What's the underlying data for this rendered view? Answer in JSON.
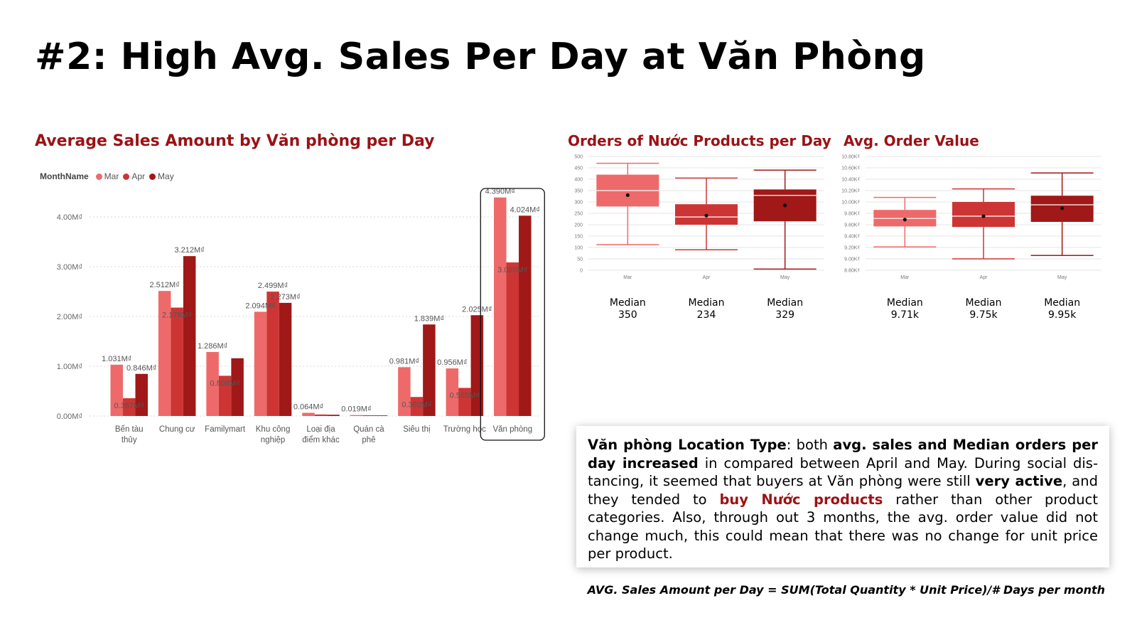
{
  "slide_title": "#2: High Avg. Sales Per Day at Văn Phòng",
  "colors": {
    "mar": "#ee6a6a",
    "apr": "#cd3535",
    "may": "#a01818",
    "title_red": "#9b1215"
  },
  "legend": {
    "title": "MonthName",
    "items": [
      "Mar",
      "Apr",
      "May"
    ]
  },
  "chart_data": [
    {
      "type": "bar",
      "title": "Average Sales Amount by Văn phòng per Day",
      "categories": [
        "Bến tàu thủy",
        "Chung cư",
        "Familymart",
        "Khu công nghiệp",
        "Loại địa điểm khác",
        "Quán cà phê",
        "Siêu thị",
        "Trường học",
        "Văn phòng"
      ],
      "category_lines": [
        [
          "Bến tàu",
          "thủy"
        ],
        [
          "Chung cư"
        ],
        [
          "Familymart"
        ],
        [
          "Khu công",
          "nghiệp"
        ],
        [
          "Loại địa",
          "điểm khác"
        ],
        [
          "Quán cà",
          "phê"
        ],
        [
          "Siêu thị"
        ],
        [
          "Trường học"
        ],
        [
          "Văn phòng"
        ]
      ],
      "series": [
        {
          "name": "Mar",
          "values": [
            1.031,
            2.512,
            1.286,
            2.094,
            0.064,
            0.019,
            0.981,
            0.956,
            4.39
          ],
          "labels": [
            "1.031M₫",
            "2.512M₫",
            "1.286M₫",
            "2.094M₫",
            "0.064M₫",
            "0.019M₫",
            "0.981M₫",
            "0.956M₫",
            "4.390M₫"
          ]
        },
        {
          "name": "Apr",
          "values": [
            0.357,
            2.178,
            0.808,
            2.499,
            0.03,
            0.015,
            0.382,
            0.565,
            3.085
          ],
          "labels": [
            "0.357M₫",
            "2.178M₫",
            "0.808M₫",
            "2.499M₫",
            "",
            "",
            "0.382M₫",
            "0.565M₫",
            "3.085M₫"
          ]
        },
        {
          "name": "May",
          "values": [
            0.846,
            3.212,
            1.16,
            2.273,
            0.025,
            0.012,
            1.839,
            2.025,
            4.024
          ],
          "labels": [
            "0.846M₫",
            "3.212M₫",
            "",
            "2.273M₫",
            "",
            "",
            "1.839M₫",
            "2.025M₫",
            "4.024M₫"
          ]
        }
      ],
      "yticks": [
        "0.00M₫",
        "1.00M₫",
        "2.00M₫",
        "3.00M₫",
        "4.00M₫"
      ],
      "ylim": [
        0,
        4.5
      ],
      "highlight": "Văn phòng"
    },
    {
      "type": "box",
      "title": "Orders of Nước Products per Day",
      "categories": [
        "Mar",
        "Apr",
        "May"
      ],
      "boxes": [
        {
          "min": 112,
          "q1": 280,
          "median": 350,
          "mean": 330,
          "q3": 420,
          "max": 470
        },
        {
          "min": 90,
          "q1": 200,
          "median": 234,
          "mean": 240,
          "q3": 290,
          "max": 405
        },
        {
          "min": 5,
          "q1": 215,
          "median": 329,
          "mean": 285,
          "q3": 355,
          "max": 440
        }
      ],
      "yticks": [
        "0",
        "50",
        "100",
        "150",
        "200",
        "250",
        "300",
        "350",
        "400",
        "450",
        "500"
      ],
      "ylim": [
        0,
        500
      ],
      "median_labels": [
        [
          "Median",
          "350"
        ],
        [
          "Median",
          "234"
        ],
        [
          "Median",
          "329"
        ]
      ]
    },
    {
      "type": "box",
      "title": "Avg. Order Value",
      "categories": [
        "Mar",
        "Apr",
        "May"
      ],
      "boxes": [
        {
          "min": 9.21,
          "q1": 9.57,
          "median": 9.71,
          "mean": 9.69,
          "q3": 9.86,
          "max": 10.08
        },
        {
          "min": 9.0,
          "q1": 9.56,
          "median": 9.75,
          "mean": 9.75,
          "q3": 10.0,
          "max": 10.23
        },
        {
          "min": 9.06,
          "q1": 9.65,
          "median": 9.95,
          "mean": 9.89,
          "q3": 10.11,
          "max": 10.51
        }
      ],
      "yticks": [
        "8.80K₫",
        "9.00K₫",
        "9.20K₫",
        "9.40K₫",
        "9.60K₫",
        "9.80K₫",
        "10.00K₫",
        "10.20K₫",
        "10.40K₫",
        "10.60K₫",
        "10.80K₫"
      ],
      "ylim": [
        8.8,
        10.8
      ],
      "median_labels": [
        [
          "Median",
          "9.71k"
        ],
        [
          "Median",
          "9.75k"
        ],
        [
          "Median",
          "9.95k"
        ]
      ]
    }
  ],
  "insight": {
    "p1_bold": "Văn phòng Location Type",
    "p2": ": both ",
    "p3_bold": "avg. sales and Median orders per day increased",
    "p4": " in compared between April and May. During social dis-tancing, it seemed that buyers at Văn phòng were still ",
    "p5_bold": "very active",
    "p6": ", and they tended to ",
    "p7_highlight": "buy Nước products",
    "p8": " rather than other product categories. Also, through out 3 months, the avg. order value did not change much, this could mean that there was no change for unit price per product."
  },
  "formula": "AVG. Sales Amount per Day = SUM(Total Quantity * Unit Price)/# Days per month"
}
